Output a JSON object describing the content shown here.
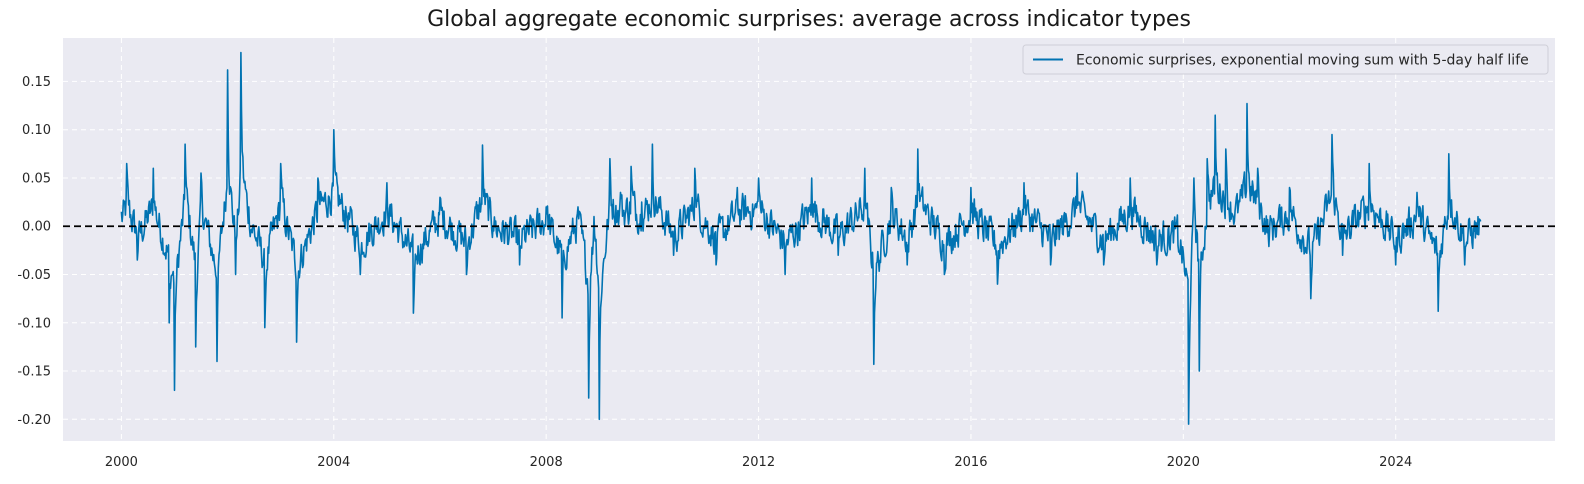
{
  "chart_data": {
    "type": "line",
    "title": "Global aggregate economic surprises: average across indicator types",
    "xlabel": "",
    "ylabel": "",
    "xlim": [
      1998.9,
      2027.0
    ],
    "ylim": [
      -0.2225,
      0.195
    ],
    "x_ticks": [
      2000,
      2004,
      2008,
      2012,
      2016,
      2020,
      2024
    ],
    "x_tick_labels": [
      "2000",
      "2004",
      "2008",
      "2012",
      "2016",
      "2020",
      "2024"
    ],
    "y_ticks": [
      -0.2,
      -0.15,
      -0.1,
      -0.05,
      0.0,
      0.05,
      0.1,
      0.15
    ],
    "y_tick_labels": [
      "-0.20",
      "-0.15",
      "-0.10",
      "-0.05",
      "0.00",
      "0.05",
      "0.10",
      "0.15"
    ],
    "grid": true,
    "reference_line": {
      "y": 0.0,
      "style": "dashed",
      "color": "#000000"
    },
    "legend": {
      "position": "upper-right",
      "entries": [
        "Economic surprises, exponential moving sum with 5-day half life"
      ]
    },
    "series": [
      {
        "name": "Economic surprises, exponential moving sum with 5-day half life",
        "color": "#0173b2",
        "x": [
          2000.0,
          2000.1,
          2000.3,
          2000.6,
          2000.9,
          2001.0,
          2001.2,
          2001.4,
          2001.5,
          2001.8,
          2002.0,
          2002.15,
          2002.25,
          2002.4,
          2002.7,
          2003.0,
          2003.3,
          2003.7,
          2004.0,
          2004.5,
          2005.0,
          2005.5,
          2006.0,
          2006.5,
          2006.8,
          2007.0,
          2007.5,
          2008.0,
          2008.3,
          2008.6,
          2008.8,
          2008.9,
          2009.0,
          2009.2,
          2009.4,
          2009.6,
          2009.8,
          2010.0,
          2010.4,
          2010.8,
          2011.2,
          2011.6,
          2012.0,
          2012.5,
          2013.0,
          2013.5,
          2014.0,
          2014.17,
          2014.5,
          2014.8,
          2015.0,
          2015.5,
          2016.0,
          2016.5,
          2017.0,
          2017.5,
          2018.0,
          2018.5,
          2019.0,
          2019.5,
          2019.9,
          2020.1,
          2020.2,
          2020.3,
          2020.45,
          2020.6,
          2020.8,
          2021.0,
          2021.2,
          2021.4,
          2021.6,
          2022.0,
          2022.4,
          2022.8,
          2023.0,
          2023.5,
          2024.0,
          2024.4,
          2024.8,
          2025.0,
          2025.3,
          2025.6
        ],
        "values": [
          0.015,
          0.065,
          -0.035,
          0.06,
          -0.1,
          -0.17,
          0.085,
          -0.125,
          0.055,
          -0.14,
          0.162,
          -0.05,
          0.18,
          0.02,
          -0.105,
          0.065,
          -0.12,
          0.05,
          0.1,
          -0.05,
          0.045,
          -0.09,
          0.03,
          -0.05,
          0.084,
          0.0,
          -0.04,
          0.02,
          -0.095,
          0.02,
          -0.178,
          0.01,
          -0.2,
          0.07,
          0.035,
          0.062,
          0.025,
          0.085,
          -0.03,
          0.06,
          -0.04,
          0.04,
          0.05,
          -0.05,
          0.05,
          -0.03,
          0.06,
          -0.143,
          0.04,
          -0.04,
          0.08,
          -0.05,
          0.04,
          -0.06,
          0.045,
          -0.04,
          0.055,
          -0.04,
          0.05,
          -0.04,
          -0.02,
          -0.205,
          0.05,
          -0.15,
          0.07,
          0.115,
          0.08,
          0.03,
          0.127,
          0.06,
          -0.01,
          0.04,
          -0.075,
          0.095,
          -0.03,
          0.065,
          -0.04,
          0.035,
          -0.088,
          0.075,
          -0.04,
          0.005
        ]
      }
    ]
  }
}
